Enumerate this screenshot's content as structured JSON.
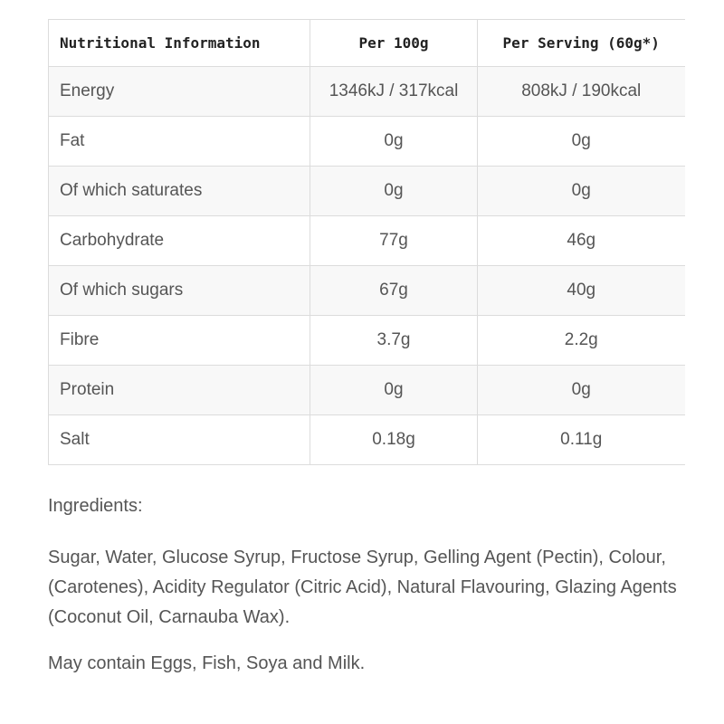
{
  "nutrition_table": {
    "headers": {
      "nutrient": "Nutritional Information",
      "per_100g": "Per 100g",
      "per_serving": "Per Serving (60g*)"
    },
    "rows": [
      {
        "nutrient": "Energy",
        "per_100g": "1346kJ / 317kcal",
        "per_serving": "808kJ / 190kcal"
      },
      {
        "nutrient": "Fat",
        "per_100g": "0g",
        "per_serving": "0g"
      },
      {
        "nutrient": "Of which saturates",
        "per_100g": "0g",
        "per_serving": "0g"
      },
      {
        "nutrient": "Carbohydrate",
        "per_100g": "77g",
        "per_serving": "46g"
      },
      {
        "nutrient": "Of which sugars",
        "per_100g": "67g",
        "per_serving": "40g"
      },
      {
        "nutrient": "Fibre",
        "per_100g": "3.7g",
        "per_serving": "2.2g"
      },
      {
        "nutrient": "Protein",
        "per_100g": "0g",
        "per_serving": "0g"
      },
      {
        "nutrient": "Salt",
        "per_100g": "0.18g",
        "per_serving": "0.11g"
      }
    ]
  },
  "ingredients": {
    "heading": "Ingredients:",
    "text": "Sugar, Water, Glucose Syrup, Fructose Syrup, Gelling Agent (Pectin), Colour, (Carotenes), Acidity Regulator (Citric Acid), Natural Flavouring, Glazing Agents (Coconut Oil, Carnauba Wax).",
    "allergens": "May contain Eggs, Fish, Soya and Milk."
  },
  "colors": {
    "text": "#555555",
    "header_text": "#222222",
    "border": "#dcdcdc",
    "stripe": "#f8f8f8"
  }
}
